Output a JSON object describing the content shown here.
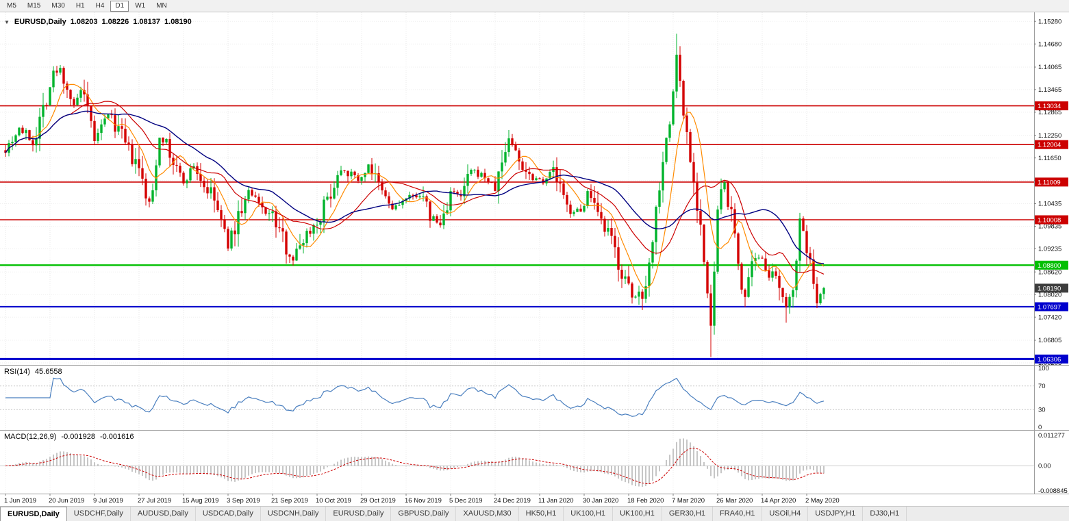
{
  "toolbar": {
    "timeframes": [
      "M5",
      "M15",
      "M30",
      "H1",
      "H4",
      "D1",
      "W1",
      "MN"
    ],
    "active_timeframe": "D1"
  },
  "chart": {
    "header": {
      "symbol": "EURUSD,Daily",
      "open": "1.08203",
      "high": "1.08226",
      "low": "1.08137",
      "close": "1.08190"
    },
    "price_axis_ticks": [
      "1.15280",
      "1.14680",
      "1.14065",
      "1.13465",
      "1.12865",
      "1.12250",
      "1.11650",
      "1.11050",
      "1.10435",
      "1.09835",
      "1.09235",
      "1.08620",
      "1.08020",
      "1.07420",
      "1.06805",
      "1.06205"
    ],
    "date_ticks": [
      "1 Jun 2019",
      "20 Jun 2019",
      "9 Jul 2019",
      "27 Jul 2019",
      "15 Aug 2019",
      "3 Sep 2019",
      "21 Sep 2019",
      "10 Oct 2019",
      "29 Oct 2019",
      "16 Nov 2019",
      "5 Dec 2019",
      "24 Dec 2019",
      "11 Jan 2020",
      "30 Jan 2020",
      "18 Feb 2020",
      "7 Mar 2020",
      "26 Mar 2020",
      "14 Apr 2020",
      "2 May 2020"
    ],
    "horizontal_lines": [
      {
        "label": "1.13034",
        "value": 1.13034,
        "color": "#cc0000",
        "width": 1.6
      },
      {
        "label": "1.12004",
        "value": 1.12004,
        "color": "#cc0000",
        "width": 1.6
      },
      {
        "label": "1.11009",
        "value": 1.11009,
        "color": "#cc0000",
        "width": 1.6
      },
      {
        "label": "1.10008",
        "value": 1.10008,
        "color": "#cc0000",
        "width": 1.6
      },
      {
        "label": "1.08800",
        "value": 1.088,
        "color": "#00bf00",
        "width": 2.4
      },
      {
        "label": "1.07697",
        "value": 1.07697,
        "color": "#0000cd",
        "width": 2.2
      },
      {
        "label": "1.06306",
        "value": 1.06306,
        "color": "#0000cd",
        "width": 3
      }
    ],
    "current_price": {
      "label": "1.08190",
      "value": 1.0819,
      "background": "#3d3d3d"
    },
    "colors": {
      "up": "#00b32c",
      "down": "#d40000",
      "ma_fast": "#ff8a00",
      "ma_mid": "#cc0000",
      "ma_slow": "#000080",
      "rsi_line": "#4a7fbf",
      "macd_histogram": "#a8a8a8",
      "macd_signal": "#cc0000"
    },
    "price_range": {
      "max": 1.1552,
      "min": 1.0615
    },
    "candles": {
      "bar_count": 240,
      "anchors": [
        [
          0,
          1.119
        ],
        [
          4,
          1.1245
        ],
        [
          8,
          1.1205
        ],
        [
          11,
          1.13
        ],
        [
          14,
          1.1385
        ],
        [
          16,
          1.14
        ],
        [
          18,
          1.1355
        ],
        [
          20,
          1.13
        ],
        [
          22,
          1.1345
        ],
        [
          26,
          1.1215
        ],
        [
          28,
          1.124
        ],
        [
          30,
          1.1285
        ],
        [
          33,
          1.124
        ],
        [
          36,
          1.118
        ],
        [
          39,
          1.113
        ],
        [
          42,
          1.1035
        ],
        [
          43,
          1.108
        ],
        [
          45,
          1.1235
        ],
        [
          48,
          1.117
        ],
        [
          52,
          1.11
        ],
        [
          55,
          1.1145
        ],
        [
          58,
          1.109
        ],
        [
          61,
          1.1055
        ],
        [
          65,
          1.093
        ],
        [
          68,
          1.101
        ],
        [
          71,
          1.1075
        ],
        [
          74,
          1.104
        ],
        [
          78,
          1.101
        ],
        [
          81,
          1.095
        ],
        [
          84,
          1.0895
        ],
        [
          87,
          1.0955
        ],
        [
          91,
          1.0995
        ],
        [
          94,
          1.1055
        ],
        [
          98,
          1.114
        ],
        [
          101,
          1.112
        ],
        [
          104,
          1.1105
        ],
        [
          106,
          1.115
        ],
        [
          109,
          1.1085
        ],
        [
          113,
          1.103
        ],
        [
          117,
          1.1055
        ],
        [
          121,
          1.107
        ],
        [
          124,
          1.101
        ],
        [
          127,
          1.0985
        ],
        [
          130,
          1.1075
        ],
        [
          133,
          1.106
        ],
        [
          136,
          1.113
        ],
        [
          140,
          1.1115
        ],
        [
          143,
          1.1085
        ],
        [
          147,
          1.122
        ],
        [
          150,
          1.116
        ],
        [
          153,
          1.112
        ],
        [
          157,
          1.1105
        ],
        [
          160,
          1.1135
        ],
        [
          164,
          1.103
        ],
        [
          168,
          1.102
        ],
        [
          170,
          1.1075
        ],
        [
          173,
          1.1
        ],
        [
          177,
          1.0945
        ],
        [
          180,
          1.086
        ],
        [
          183,
          1.079
        ],
        [
          186,
          1.081
        ],
        [
          188,
          1.088
        ],
        [
          190,
          1.103
        ],
        [
          192,
          1.117
        ],
        [
          194,
          1.125
        ],
        [
          196,
          1.144
        ],
        [
          198,
          1.1285
        ],
        [
          200,
          1.1175
        ],
        [
          201,
          1.11
        ],
        [
          203,
          1.099
        ],
        [
          205,
          1.079
        ],
        [
          206,
          1.0705
        ],
        [
          208,
          1.102
        ],
        [
          210,
          1.11
        ],
        [
          212,
          1.101
        ],
        [
          215,
          1.083
        ],
        [
          216,
          1.0795
        ],
        [
          218,
          1.087
        ],
        [
          221,
          1.0905
        ],
        [
          223,
          1.086
        ],
        [
          226,
          1.0815
        ],
        [
          228,
          1.076
        ],
        [
          230,
          1.0835
        ],
        [
          232,
          1.0985
        ],
        [
          234,
          1.0935
        ],
        [
          236,
          1.082
        ],
        [
          237,
          1.0795
        ],
        [
          239,
          1.0819
        ]
      ],
      "extremes": [
        {
          "i": 16,
          "h": 1.1412
        },
        {
          "i": 65,
          "l": 1.0926
        },
        {
          "i": 84,
          "l": 1.0879
        },
        {
          "i": 147,
          "h": 1.1239
        },
        {
          "i": 183,
          "l": 1.0778
        },
        {
          "i": 196,
          "h": 1.1495
        },
        {
          "i": 206,
          "l": 1.0636
        },
        {
          "i": 216,
          "l": 1.0769
        },
        {
          "i": 228,
          "l": 1.0727
        },
        {
          "i": 232,
          "h": 1.1018
        },
        {
          "i": 237,
          "l": 1.0766
        }
      ]
    }
  },
  "rsi": {
    "label": "RSI(14)",
    "value": "45.6558",
    "levels": [
      70,
      30
    ],
    "scale_ticks": [
      "100",
      "70",
      "30",
      "0"
    ]
  },
  "macd": {
    "label": "MACD(12,26,9)",
    "values": [
      "-0.001928",
      "-0.001616"
    ],
    "scale_ticks": [
      "0.011277",
      "0.00",
      "-0.008845"
    ],
    "max": 0.011277,
    "min": -0.008845
  },
  "tabs": {
    "items": [
      "EURUSD,Daily",
      "USDCHF,Daily",
      "AUDUSD,Daily",
      "USDCAD,Daily",
      "USDCNH,Daily",
      "EURUSD,Daily",
      "GBPUSD,Daily",
      "XAUUSD,M30",
      "HK50,H1",
      "UK100,H1",
      "UK100,H1",
      "GER30,H1",
      "FRA40,H1",
      "USOil,H4",
      "USDJPY,H1",
      "DJ30,H1"
    ],
    "active_index": 0
  }
}
